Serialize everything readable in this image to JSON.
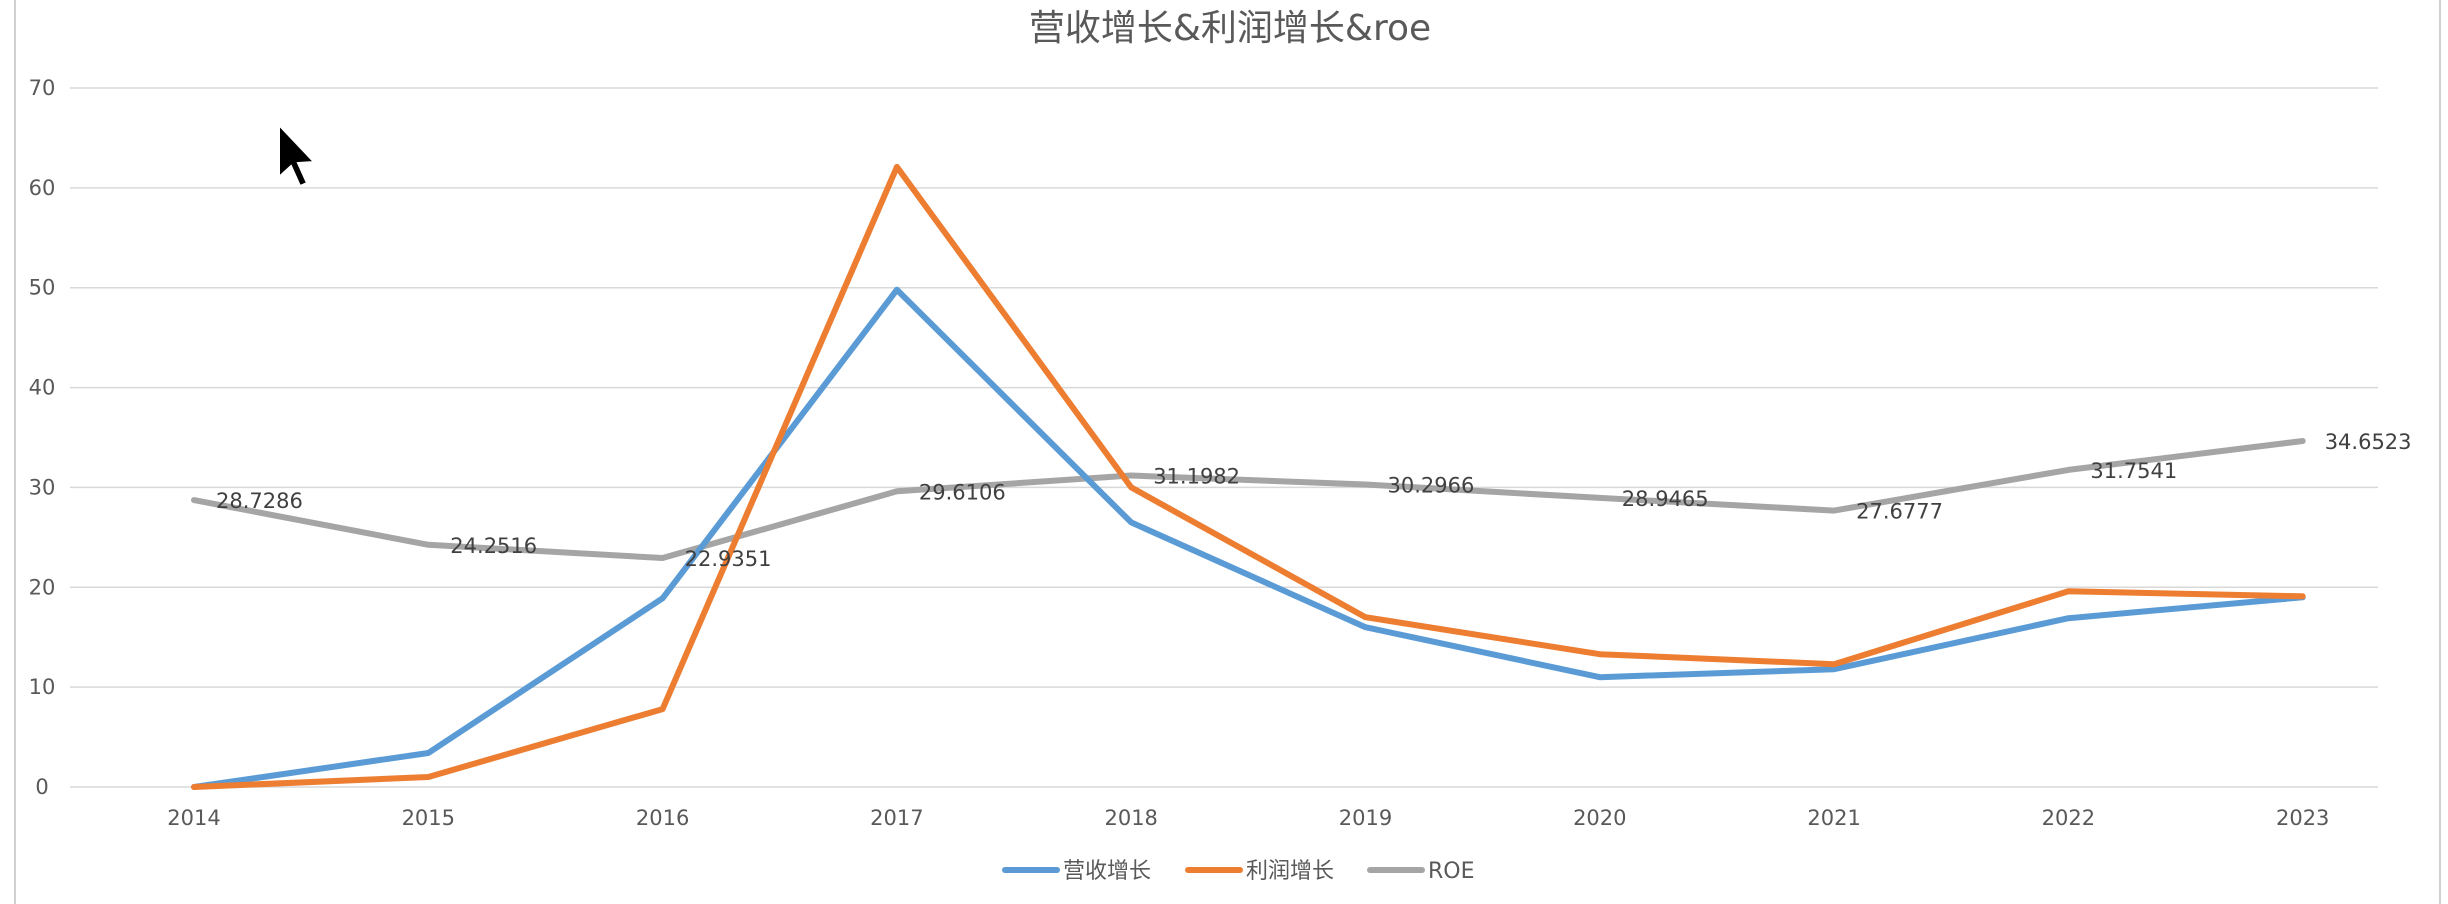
{
  "chart_data": {
    "type": "line",
    "title": "营收增长&利润增长&roe",
    "xlabel": "",
    "ylabel": "",
    "categories": [
      "2014",
      "2015",
      "2016",
      "2017",
      "2018",
      "2019",
      "2020",
      "2021",
      "2022",
      "2023"
    ],
    "ylim": [
      0,
      70
    ],
    "yticks": [
      0,
      10,
      20,
      30,
      40,
      50,
      60,
      70
    ],
    "grid": true,
    "legend_position": "bottom",
    "series": [
      {
        "name": "营收增长",
        "color": "#5b9bd5",
        "values": [
          0,
          3.4,
          18.9,
          49.8,
          26.5,
          16.0,
          11.0,
          11.8,
          16.9,
          19.0
        ],
        "show_labels": false
      },
      {
        "name": "利润增长",
        "color": "#ed7d31",
        "values": [
          0,
          1.0,
          7.8,
          62.1,
          30.0,
          17.0,
          13.3,
          12.3,
          19.6,
          19.1
        ],
        "show_labels": false
      },
      {
        "name": "ROE",
        "color": "#a5a5a5",
        "values": [
          28.7286,
          24.2516,
          22.9351,
          29.6106,
          31.1982,
          30.2966,
          28.9465,
          27.6777,
          31.7541,
          34.6523
        ],
        "labels": [
          "28.7286",
          "24.2516",
          "22.9351",
          "29.6106",
          "31.1982",
          "30.2966",
          "28.9465",
          "27.6777",
          "31.7541",
          "34.6523"
        ],
        "show_labels": true
      }
    ]
  }
}
